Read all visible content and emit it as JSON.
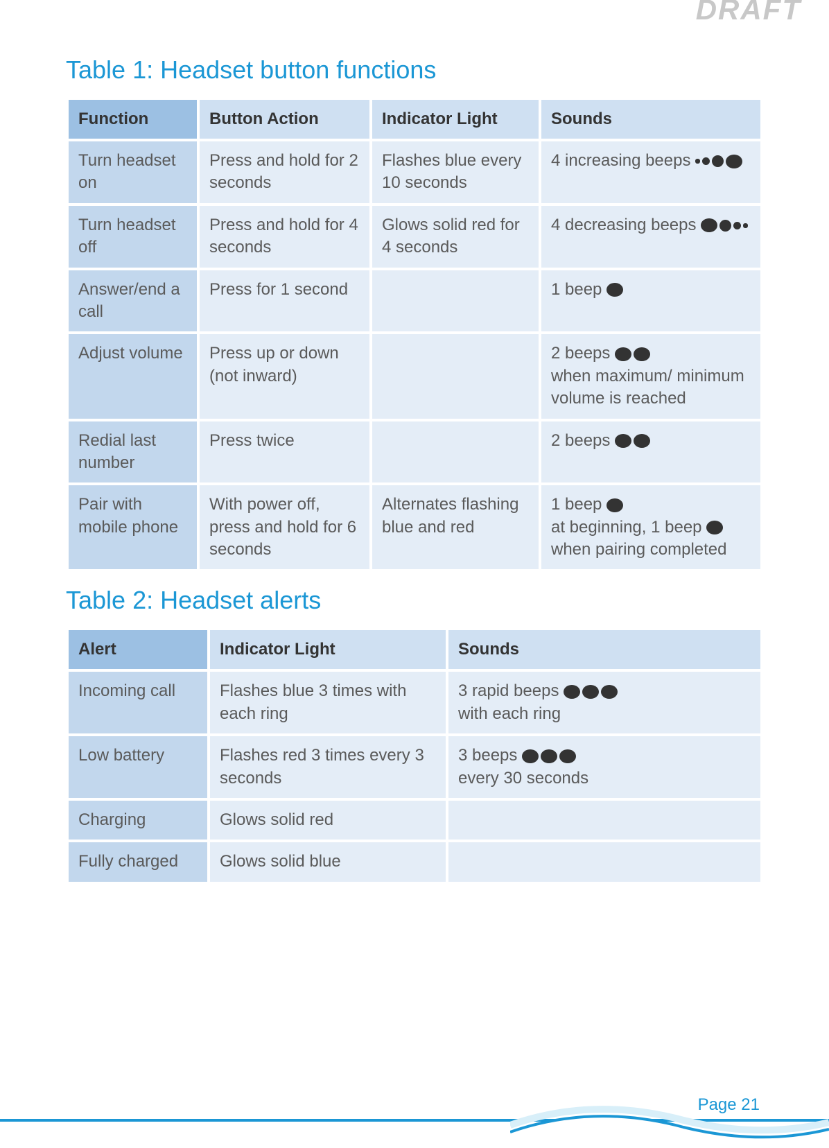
{
  "watermark": "DRAFT",
  "page_label": "Page 21",
  "colors": {
    "accent": "#1b97d5",
    "header_dark": "#9cc0e3",
    "header_light": "#cfe0f2",
    "cell_dark": "#c2d7ed",
    "cell_light": "#e4edf7",
    "text": "#5a5a5a",
    "dot": "#333333"
  },
  "table1": {
    "title": "Table 1: Headset button functions",
    "columns": [
      "Function",
      "Button Action",
      "Indicator Light",
      "Sounds"
    ],
    "rows": [
      {
        "function": "Turn headset on",
        "action": "Press and hold for 2 seconds",
        "light": "Flashes blue every 10 seconds",
        "sound_prefix": "4 increasing beeps",
        "sound_suffix": "",
        "dots": [
          "xs",
          "sm",
          "md",
          "lg"
        ]
      },
      {
        "function": "Turn headset off",
        "action": "Press and hold for 4 seconds",
        "light": "Glows solid red for 4 seconds",
        "sound_prefix": "4 decreasing beeps",
        "sound_suffix": "",
        "dots": [
          "lg",
          "md",
          "sm",
          "xs"
        ]
      },
      {
        "function": "Answer/end a call",
        "action": "Press for 1 second",
        "light": "",
        "sound_prefix": "1 beep",
        "sound_suffix": "",
        "dots": [
          "lg"
        ]
      },
      {
        "function": "Adjust volume",
        "action": "Press up or down (not inward)",
        "light": "",
        "sound_prefix": "2 beeps",
        "sound_suffix": " when maximum/ minimum volume is reached",
        "dots": [
          "lg",
          "lg"
        ]
      },
      {
        "function": "Redial last number",
        "action": "Press twice",
        "light": "",
        "sound_prefix": "2 beeps",
        "sound_suffix": "",
        "dots": [
          "lg",
          "lg"
        ]
      },
      {
        "function": "Pair with mobile phone",
        "action": "With power off, press and hold for 6 seconds",
        "light": "Alternates flashing blue and red",
        "sound_prefix": "1 beep",
        "sound_mid1": " at beginning, 1 beep",
        "sound_suffix": " when pairing completed",
        "dots": [
          "lg"
        ],
        "dots2": [
          "lg"
        ]
      }
    ]
  },
  "table2": {
    "title": "Table 2: Headset alerts",
    "columns": [
      "Alert",
      "Indicator Light",
      "Sounds"
    ],
    "rows": [
      {
        "alert": "Incoming call",
        "light": "Flashes blue 3 times with each ring",
        "sound_prefix": "3 rapid beeps",
        "sound_suffix": " with each ring",
        "dots": [
          "lg",
          "lg",
          "lg"
        ]
      },
      {
        "alert": "Low battery",
        "light": "Flashes red 3 times every 3 seconds",
        "sound_prefix": "3 beeps ",
        "sound_suffix": " every 30 seconds",
        "dots": [
          "lg",
          "lg",
          "lg"
        ]
      },
      {
        "alert": "Charging",
        "light": "Glows solid red",
        "sound_prefix": "",
        "sound_suffix": "",
        "dots": []
      },
      {
        "alert": "Fully charged",
        "light": "Glows solid blue",
        "sound_prefix": "",
        "sound_suffix": "",
        "dots": []
      }
    ]
  }
}
